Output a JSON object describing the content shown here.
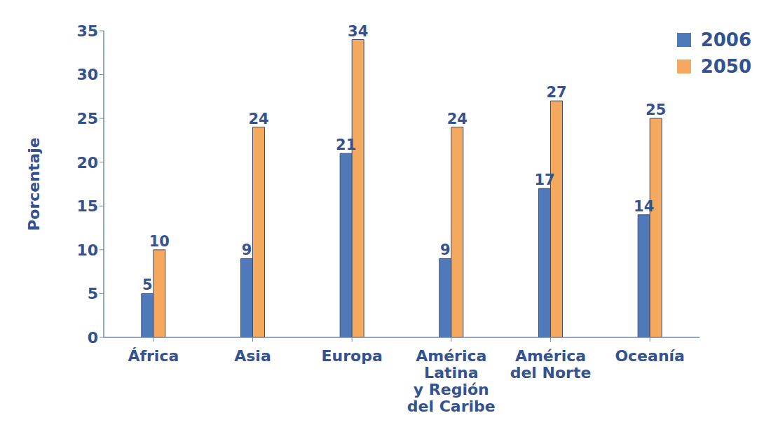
{
  "chart_data": {
    "type": "bar",
    "y_label": "Porcentaje",
    "categories": [
      "África",
      "Asia",
      "Europa",
      "América\nLatina\ny Región\ndel Caribe",
      "América\ndel Norte",
      "Oceanía"
    ],
    "series": [
      {
        "name": "2006",
        "color": "#5079b9",
        "values": [
          5,
          9,
          21,
          9,
          17,
          14
        ]
      },
      {
        "name": "2050",
        "color": "#f4a95e",
        "values": [
          10,
          24,
          34,
          24,
          27,
          25
        ]
      }
    ],
    "ylim": [
      0,
      35
    ],
    "yticks": [
      0,
      5,
      10,
      15,
      20,
      25,
      30,
      35
    ],
    "grid": false,
    "legend": "top-right",
    "data_labels": true
  }
}
